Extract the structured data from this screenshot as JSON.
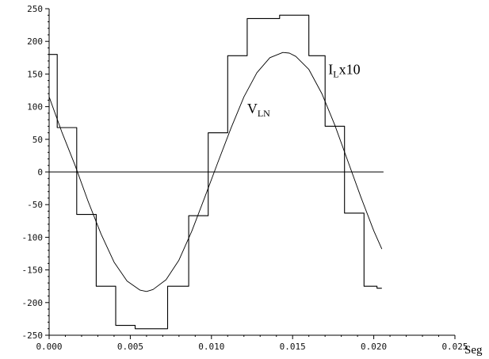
{
  "chart_data": {
    "type": "line",
    "title": "",
    "xlabel": "Seg",
    "ylabel": "",
    "xlim": [
      0,
      0.025
    ],
    "ylim": [
      -250,
      250
    ],
    "grid": false,
    "legend": "none",
    "x_ticks": [
      "0.000",
      "0.005",
      "0.010",
      "0.015",
      "0.020",
      "0.025"
    ],
    "x_tick_values": [
      0,
      0.005,
      0.01,
      0.015,
      0.02,
      0.025
    ],
    "y_ticks": [
      "250",
      "200",
      "150",
      "100",
      "50",
      "0",
      "-50",
      "-100",
      "-150",
      "-200",
      "-250"
    ],
    "y_tick_values": [
      250,
      200,
      150,
      100,
      50,
      0,
      -50,
      -100,
      -150,
      -200,
      -250
    ],
    "annotations": [
      {
        "main": "I",
        "sub": "L",
        "tail": "x10",
        "series": "current",
        "x": 0.0172,
        "y": 150
      },
      {
        "main": "V",
        "sub": "LN",
        "tail": "",
        "series": "voltage",
        "x": 0.0122,
        "y": 90
      }
    ],
    "zero_line": {
      "y": 0,
      "x_range": [
        0,
        0.0206
      ]
    },
    "series": [
      {
        "id": "current",
        "name": "",
        "color": "#000000",
        "x": [
          0,
          0.0005,
          0.0005,
          0.0017,
          0.0017,
          0.0029,
          0.0029,
          0.0041,
          0.0041,
          0.0053,
          0.0053,
          0.0073,
          0.0073,
          0.0086,
          0.0086,
          0.0098,
          0.0098,
          0.011,
          0.011,
          0.0122,
          0.0122,
          0.0142,
          0.0142,
          0.016,
          0.016,
          0.017,
          0.017,
          0.0182,
          0.0182,
          0.0194,
          0.0194,
          0.0202,
          0.0202,
          0.0205
        ],
        "y": [
          180,
          180,
          68,
          68,
          -65,
          -65,
          -175,
          -175,
          -235,
          -235,
          -240,
          -240,
          -175,
          -175,
          -67,
          -67,
          60,
          60,
          178,
          178,
          235,
          235,
          240,
          240,
          178,
          178,
          70,
          70,
          -63,
          -63,
          -175,
          -175,
          -178,
          -178
        ]
      },
      {
        "id": "voltage",
        "name": "",
        "color": "#000000",
        "x": [
          0,
          0.0008,
          0.0016,
          0.0024,
          0.0032,
          0.004,
          0.0048,
          0.0056,
          0.006,
          0.0064,
          0.0072,
          0.008,
          0.0088,
          0.0096,
          0.0104,
          0.0112,
          0.012,
          0.0128,
          0.0136,
          0.0144,
          0.0148,
          0.0152,
          0.016,
          0.0168,
          0.0176,
          0.0184,
          0.0192,
          0.02,
          0.0205
        ],
        "y": [
          115,
          60,
          10,
          -45,
          -95,
          -138,
          -167,
          -181,
          -183,
          -180,
          -165,
          -135,
          -90,
          -38,
          15,
          67,
          115,
          152,
          175,
          183,
          182,
          177,
          157,
          120,
          72,
          17,
          -38,
          -90,
          -118
        ]
      }
    ]
  }
}
